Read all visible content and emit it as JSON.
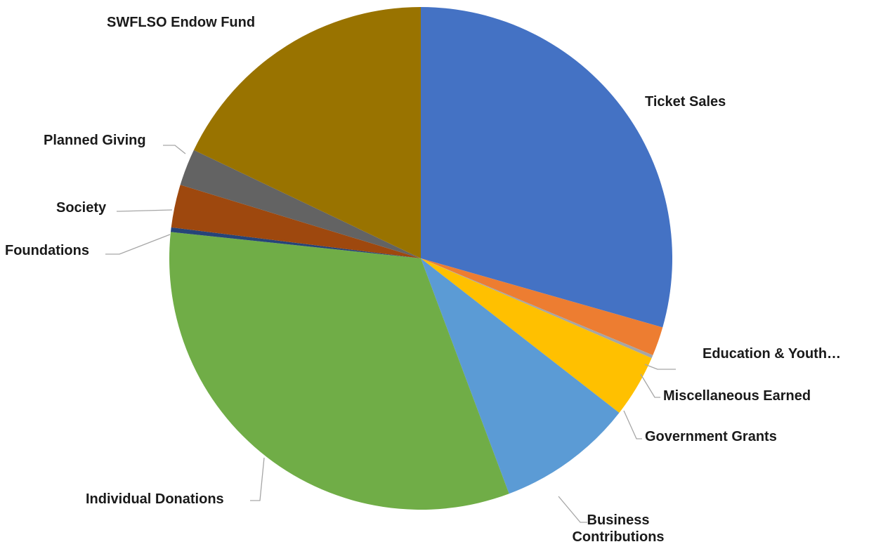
{
  "chart_data": {
    "type": "pie",
    "title": "",
    "legend": "none",
    "slices": [
      {
        "label": "Ticket Sales",
        "value": 29.9,
        "color": "#4472C4"
      },
      {
        "label": "Education & Youth…",
        "value": 1.9,
        "color": "#ED7D31"
      },
      {
        "label": "Miscellaneous Earned",
        "value": 0.2,
        "color": "#A5A5A5"
      },
      {
        "label": "Government Grants",
        "value": 4.1,
        "color": "#FFC000"
      },
      {
        "label": "Business Contributions",
        "value": 8.9,
        "color": "#5B9BD5"
      },
      {
        "label": "Individual Donations",
        "value": 32.9,
        "color": "#70AD47"
      },
      {
        "label": "Foundations",
        "value": 0.3,
        "color": "#264478"
      },
      {
        "label": "Society",
        "value": 2.8,
        "color": "#9E480E"
      },
      {
        "label": "Planned Giving",
        "value": 2.4,
        "color": "#636363"
      },
      {
        "label": "SWFLSO Endow Fund",
        "value": 18.2,
        "color": "#997300"
      }
    ]
  }
}
